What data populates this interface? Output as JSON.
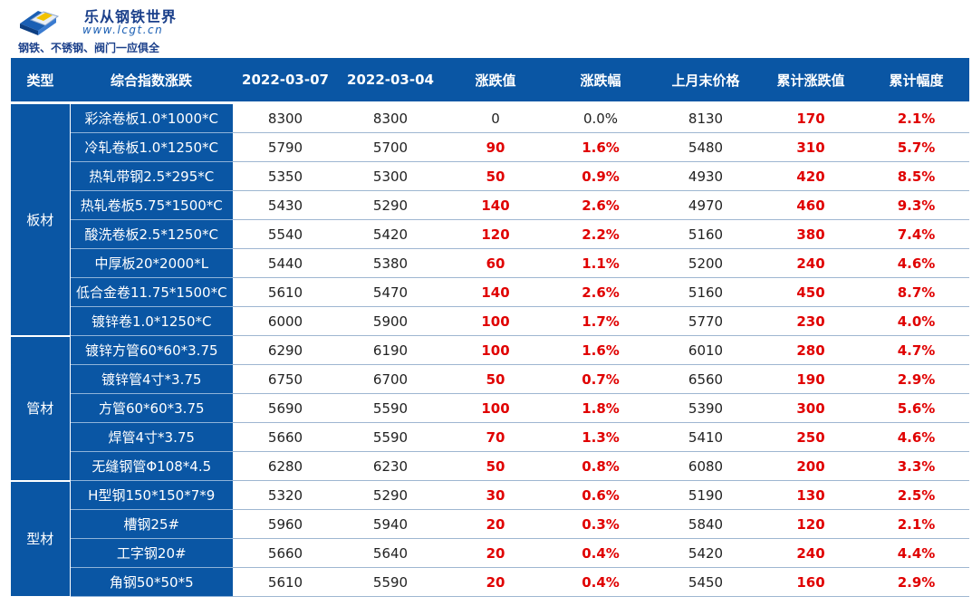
{
  "header": {
    "brand": "乐从钢铁世界",
    "url": "www.lcgt.cn",
    "slogan": "钢铁、不锈钢、阀门一应俱全"
  },
  "table": {
    "columns": [
      "类型",
      "综合指数涨跌",
      "2022-03-07",
      "2022-03-04",
      "涨跌值",
      "涨跌幅",
      "上月末价格",
      "累计涨跌值",
      "累计幅度"
    ],
    "groups": [
      {
        "category": "板材",
        "rows": [
          {
            "name": "彩涂卷板1.0*1000*C",
            "d1": "8300",
            "d2": "8300",
            "change": "0",
            "pct": "0.0%",
            "last_month": "8130",
            "cum_change": "170",
            "cum_pct": "2.1%"
          },
          {
            "name": "冷轧卷板1.0*1250*C",
            "d1": "5790",
            "d2": "5700",
            "change": "90",
            "pct": "1.6%",
            "last_month": "5480",
            "cum_change": "310",
            "cum_pct": "5.7%"
          },
          {
            "name": "热轧带钢2.5*295*C",
            "d1": "5350",
            "d2": "5300",
            "change": "50",
            "pct": "0.9%",
            "last_month": "4930",
            "cum_change": "420",
            "cum_pct": "8.5%"
          },
          {
            "name": "热轧卷板5.75*1500*C",
            "d1": "5430",
            "d2": "5290",
            "change": "140",
            "pct": "2.6%",
            "last_month": "4970",
            "cum_change": "460",
            "cum_pct": "9.3%"
          },
          {
            "name": "酸洗卷板2.5*1250*C",
            "d1": "5540",
            "d2": "5420",
            "change": "120",
            "pct": "2.2%",
            "last_month": "5160",
            "cum_change": "380",
            "cum_pct": "7.4%"
          },
          {
            "name": "中厚板20*2000*L",
            "d1": "5440",
            "d2": "5380",
            "change": "60",
            "pct": "1.1%",
            "last_month": "5200",
            "cum_change": "240",
            "cum_pct": "4.6%"
          },
          {
            "name": "低合金卷11.75*1500*C",
            "d1": "5610",
            "d2": "5470",
            "change": "140",
            "pct": "2.6%",
            "last_month": "5160",
            "cum_change": "450",
            "cum_pct": "8.7%"
          },
          {
            "name": "镀锌卷1.0*1250*C",
            "d1": "6000",
            "d2": "5900",
            "change": "100",
            "pct": "1.7%",
            "last_month": "5770",
            "cum_change": "230",
            "cum_pct": "4.0%"
          }
        ]
      },
      {
        "category": "管材",
        "rows": [
          {
            "name": "镀锌方管60*60*3.75",
            "d1": "6290",
            "d2": "6190",
            "change": "100",
            "pct": "1.6%",
            "last_month": "6010",
            "cum_change": "280",
            "cum_pct": "4.7%"
          },
          {
            "name": "镀锌管4寸*3.75",
            "d1": "6750",
            "d2": "6700",
            "change": "50",
            "pct": "0.7%",
            "last_month": "6560",
            "cum_change": "190",
            "cum_pct": "2.9%"
          },
          {
            "name": "方管60*60*3.75",
            "d1": "5690",
            "d2": "5590",
            "change": "100",
            "pct": "1.8%",
            "last_month": "5390",
            "cum_change": "300",
            "cum_pct": "5.6%"
          },
          {
            "name": "焊管4寸*3.75",
            "d1": "5660",
            "d2": "5590",
            "change": "70",
            "pct": "1.3%",
            "last_month": "5410",
            "cum_change": "250",
            "cum_pct": "4.6%"
          },
          {
            "name": "无缝钢管Φ108*4.5",
            "d1": "6280",
            "d2": "6230",
            "change": "50",
            "pct": "0.8%",
            "last_month": "6080",
            "cum_change": "200",
            "cum_pct": "3.3%"
          }
        ]
      },
      {
        "category": "型材",
        "rows": [
          {
            "name": "H型钢150*150*7*9",
            "d1": "5320",
            "d2": "5290",
            "change": "30",
            "pct": "0.6%",
            "last_month": "5190",
            "cum_change": "130",
            "cum_pct": "2.5%"
          },
          {
            "name": "槽钢25#",
            "d1": "5960",
            "d2": "5940",
            "change": "20",
            "pct": "0.3%",
            "last_month": "5840",
            "cum_change": "120",
            "cum_pct": "2.1%"
          },
          {
            "name": "工字钢20#",
            "d1": "5660",
            "d2": "5640",
            "change": "20",
            "pct": "0.4%",
            "last_month": "5420",
            "cum_change": "240",
            "cum_pct": "4.4%"
          },
          {
            "name": "角钢50*50*5",
            "d1": "5610",
            "d2": "5590",
            "change": "20",
            "pct": "0.4%",
            "last_month": "5450",
            "cum_change": "160",
            "cum_pct": "2.9%"
          }
        ]
      }
    ]
  },
  "colors": {
    "header_blue": "#0a56a4",
    "up_red": "#e00000",
    "text_dark": "#222222"
  }
}
